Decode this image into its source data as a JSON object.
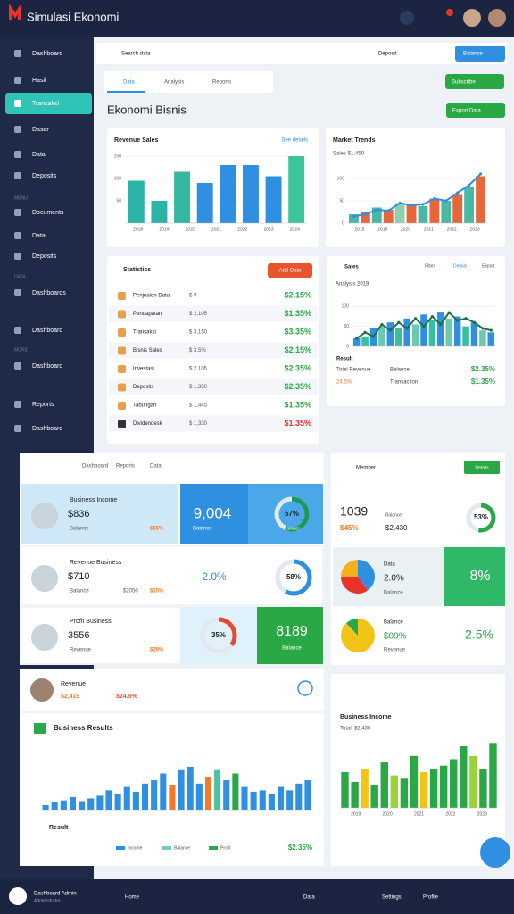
{
  "header": {
    "title": "Simulasi Ekonomi"
  },
  "sidebar": {
    "items": [
      "Dashboard",
      "Hasil",
      "Transaksi",
      "Dasar",
      "Data",
      "Deposits",
      "Documents",
      "Data",
      "Deposits",
      "Dashboards",
      "Dashboard",
      "Dashboard",
      "Reports",
      "Dashboard"
    ],
    "sections": [
      "MENU",
      "DATA",
      "MORE"
    ],
    "user": "Dashboard Admin",
    "user_role": "Administrator"
  },
  "toolbar": {
    "search": "Search data",
    "account": "Deposit",
    "balance": "Balance"
  },
  "tabs": [
    "Data",
    "Analysis",
    "Reports"
  ],
  "page_title": "Ekonomi Bisnis",
  "actions": {
    "top": "Subscribe",
    "second": "Export Data"
  },
  "revenue": {
    "title": "Revenue Sales",
    "link": "See details",
    "ylim": [
      0,
      160
    ],
    "yticks": [
      50,
      100,
      150
    ],
    "x_labels": [
      "2018",
      "2019",
      "2020",
      "2021",
      "2022",
      "2023",
      "2024"
    ],
    "values": [
      95,
      50,
      115,
      90,
      130,
      130,
      105,
      150
    ],
    "colors": [
      "#2bb3a8",
      "#2bb3a8",
      "#36b8a0",
      "#2f8fe0",
      "#2f8fe0",
      "#2f8fe0",
      "#2f8fe0",
      "#3cc49a"
    ]
  },
  "market": {
    "title": "Market Trends",
    "subtitle": "Sales $1,450",
    "ylim": [
      0,
      130
    ],
    "yticks": [
      0,
      50,
      100
    ],
    "x_labels": [
      "2018",
      "2019",
      "2020",
      "2021",
      "2022",
      "2023"
    ],
    "values": [
      20,
      25,
      35,
      30,
      45,
      40,
      38,
      55,
      50,
      65,
      80,
      105
    ],
    "colors": [
      "#4ab8a6",
      "#e8663a",
      "#4ab8a6",
      "#e8663a",
      "#8ed0b0",
      "#e8663a",
      "#4ab8a6",
      "#e8663a",
      "#4ab8a6",
      "#e8663a",
      "#4ab8a6",
      "#e8663a"
    ],
    "line": {
      "color": "#2f8fe0",
      "values": [
        15,
        20,
        30,
        28,
        45,
        40,
        42,
        55,
        50,
        68,
        85,
        110
      ]
    }
  },
  "stats": {
    "title": "Statistics",
    "button": "Add Data",
    "rows": [
      [
        "Penjualan Data",
        "$ 9",
        "$2.15%",
        "green"
      ],
      [
        "Pendapatan",
        "$ 2,105",
        "$1.35%",
        "green"
      ],
      [
        "Transaksi",
        "$ 3,150",
        "$3.35%",
        "green"
      ],
      [
        "Bisnis Sales",
        "$ 3.5%",
        "$2.15%",
        "green"
      ],
      [
        "Investasi",
        "$ 2,105",
        "$2.35%",
        "green"
      ],
      [
        "Deposits",
        "$ 1,350",
        "$2.35%",
        "green"
      ],
      [
        "Tabungan",
        "$ 1,445",
        "$1.35%",
        "green"
      ],
      [
        "Dividendesk",
        "$ 1,330",
        "$1.35%",
        "red"
      ]
    ]
  },
  "sales": {
    "title": "Sales",
    "buttons": [
      "Filter",
      "Details",
      "Export"
    ],
    "subtitle": "Analysis 2019",
    "ylim": [
      0,
      130
    ],
    "yticks": [
      0,
      50,
      100
    ],
    "values": [
      20,
      25,
      45,
      50,
      60,
      45,
      70,
      55,
      80,
      65,
      85,
      70,
      75,
      50,
      60,
      40,
      35
    ],
    "colors": [
      "#2f8fe0",
      "#36c0a0",
      "#2f8fe0",
      "#6cc9b0",
      "#2f8fe0",
      "#36c0a0",
      "#2f8fe0",
      "#6cc9b0",
      "#2f8fe0",
      "#36c0a0",
      "#2f8fe0",
      "#6cc9b0",
      "#2f8fe0",
      "#36c0a0",
      "#2f8fe0",
      "#6cc9b0",
      "#2f8fe0"
    ],
    "line": {
      "color": "#1f6e4a",
      "values": [
        20,
        35,
        25,
        55,
        40,
        60,
        45,
        70,
        50,
        75,
        55,
        85,
        65,
        70,
        60,
        45,
        40
      ]
    },
    "result": "Result",
    "footer": [
      [
        "Total Revenue",
        "Balance",
        "$2.35%"
      ],
      [
        "24.5%",
        "Transaction",
        "$1.35%"
      ]
    ]
  },
  "kpi": {
    "tabs": [
      "Dashboard",
      "Reports",
      "Data"
    ],
    "rows": [
      {
        "name": "Business Income",
        "value": "$836",
        "sub": "Balance",
        "extra": "$15%",
        "tile": "9,004",
        "tile_sub": "Balance",
        "donut": 57,
        "donut_label": "57%",
        "donut_sub": "Balance",
        "donut_color": "#1a9a55"
      },
      {
        "name": "Revenue Business",
        "value": "$710",
        "sub": "Balance",
        "extra": "$2050",
        "extra2": "$15%",
        "tile": "2.0%",
        "donut": 58,
        "donut_label": "58%",
        "donut_color": "#2f8fe0"
      },
      {
        "name": "Profit Business",
        "value": "3556",
        "sub": "Revenue",
        "extra": "$29%",
        "donut": 35,
        "donut_label": "35%",
        "donut_color": "#e84a30",
        "tile": "8189",
        "tile_sub": "Balance"
      }
    ]
  },
  "member": {
    "title": "Member",
    "button": "Details",
    "value": "1039",
    "sub": "Balance",
    "pct": "$45%",
    "amount": "$2,430",
    "donut": 53,
    "donut_label": "53%",
    "pie1": {
      "title": "Data",
      "value": "2.0%",
      "sub": "Balance",
      "values": [
        40,
        35,
        25
      ],
      "colors": [
        "#2f8fe0",
        "#e8332b",
        "#f2b21c"
      ]
    },
    "tile": "8%",
    "pie2": {
      "title": "Balance",
      "value": "$09%",
      "sub": "Revenue",
      "values": [
        88,
        12
      ],
      "colors": [
        "#f2c418",
        "#2aa845"
      ]
    },
    "tile2": "2.5%"
  },
  "business": {
    "title": "Business Results",
    "header": "Revenue",
    "amount": "$2,419",
    "pct": "$24.5%",
    "ylim": [
      0,
      110
    ],
    "values": [
      8,
      12,
      15,
      20,
      14,
      18,
      22,
      30,
      25,
      35,
      28,
      40,
      45,
      55,
      38,
      60,
      65,
      40,
      50,
      60,
      45,
      55,
      35,
      28,
      30,
      25,
      35,
      30,
      40,
      45
    ],
    "colors": [
      "#2f8fe0",
      "#2f8fe0",
      "#2f8fe0",
      "#2f8fe0",
      "#2f8fe0",
      "#2f8fe0",
      "#2f8fe0",
      "#2f8fe0",
      "#2f8fe0",
      "#2f8fe0",
      "#2f8fe0",
      "#2f8fe0",
      "#2f8fe0",
      "#2f8fe0",
      "#f07a2a",
      "#2f8fe0",
      "#2f8fe0",
      "#2f8fe0",
      "#f07a2a",
      "#4ec1a0",
      "#2f8fe0",
      "#2aa845",
      "#2f8fe0",
      "#2f8fe0",
      "#2f8fe0",
      "#2f8fe0",
      "#2f8fe0",
      "#2f8fe0",
      "#2f8fe0",
      "#2f8fe0"
    ],
    "legend_title": "Result",
    "legend": [
      [
        "Income",
        "#2f8fe0"
      ],
      [
        "Balance",
        "#6cd0c0"
      ],
      [
        "Profit",
        "#2aa845"
      ]
    ],
    "legend_value": "$2.35%"
  },
  "income": {
    "title": "Business Income",
    "subtitle": "Total: $2,430",
    "ylim": [
      0,
      110
    ],
    "values": [
      55,
      40,
      60,
      35,
      70,
      50,
      45,
      80,
      55,
      60,
      65,
      75,
      95,
      80,
      60,
      100
    ],
    "colors": [
      "#2aa845",
      "#2aa845",
      "#f2c418",
      "#2aa845",
      "#2aa845",
      "#9ad23a",
      "#2aa845",
      "#2aa845",
      "#f2c418",
      "#2aa845",
      "#2aa845",
      "#2aa845",
      "#2aa845",
      "#9ad23a",
      "#2aa845",
      "#2aa845"
    ],
    "x_labels": [
      "2019",
      "2020",
      "2021",
      "2022",
      "2023"
    ]
  },
  "bottom_bar": {
    "items": [
      "Home",
      "Data",
      "Settings",
      "Profile"
    ]
  }
}
